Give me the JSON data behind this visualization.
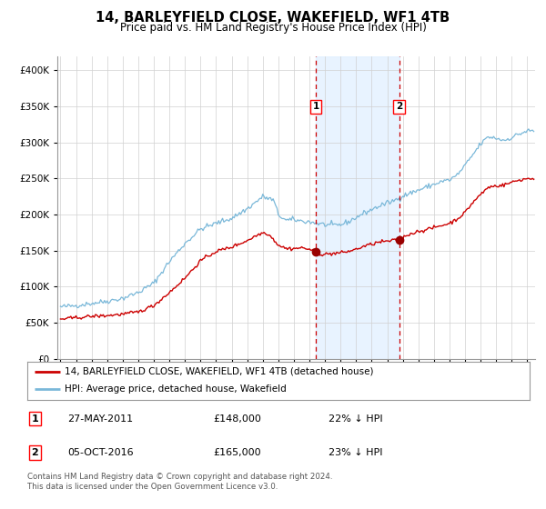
{
  "title": "14, BARLEYFIELD CLOSE, WAKEFIELD, WF1 4TB",
  "subtitle": "Price paid vs. HM Land Registry's House Price Index (HPI)",
  "hpi_color": "#7ab8d9",
  "property_color": "#cc0000",
  "marker_color": "#990000",
  "vline_color": "#cc0000",
  "shade_color": "#ddeeff",
  "annotation1": {
    "date": 2011.41,
    "price": 148000,
    "label": "1"
  },
  "annotation2": {
    "date": 2016.76,
    "price": 165000,
    "label": "2"
  },
  "legend_property": "14, BARLEYFIELD CLOSE, WAKEFIELD, WF1 4TB (detached house)",
  "legend_hpi": "HPI: Average price, detached house, Wakefield",
  "table_rows": [
    {
      "num": "1",
      "date": "27-MAY-2011",
      "price": "£148,000",
      "note": "22% ↓ HPI"
    },
    {
      "num": "2",
      "date": "05-OCT-2016",
      "price": "£165,000",
      "note": "23% ↓ HPI"
    }
  ],
  "footer": "Contains HM Land Registry data © Crown copyright and database right 2024.\nThis data is licensed under the Open Government Licence v3.0.",
  "ylim": [
    0,
    420000
  ],
  "xlim": [
    1994.8,
    2025.5
  ],
  "yticks": [
    0,
    50000,
    100000,
    150000,
    200000,
    250000,
    300000,
    350000,
    400000
  ],
  "ytick_labels": [
    "£0",
    "£50K",
    "£100K",
    "£150K",
    "£200K",
    "£250K",
    "£300K",
    "£350K",
    "£400K"
  ],
  "xticks": [
    1995,
    1996,
    1997,
    1998,
    1999,
    2000,
    2001,
    2002,
    2003,
    2004,
    2005,
    2006,
    2007,
    2008,
    2009,
    2010,
    2011,
    2012,
    2013,
    2014,
    2015,
    2016,
    2017,
    2018,
    2019,
    2020,
    2021,
    2022,
    2023,
    2024,
    2025
  ]
}
